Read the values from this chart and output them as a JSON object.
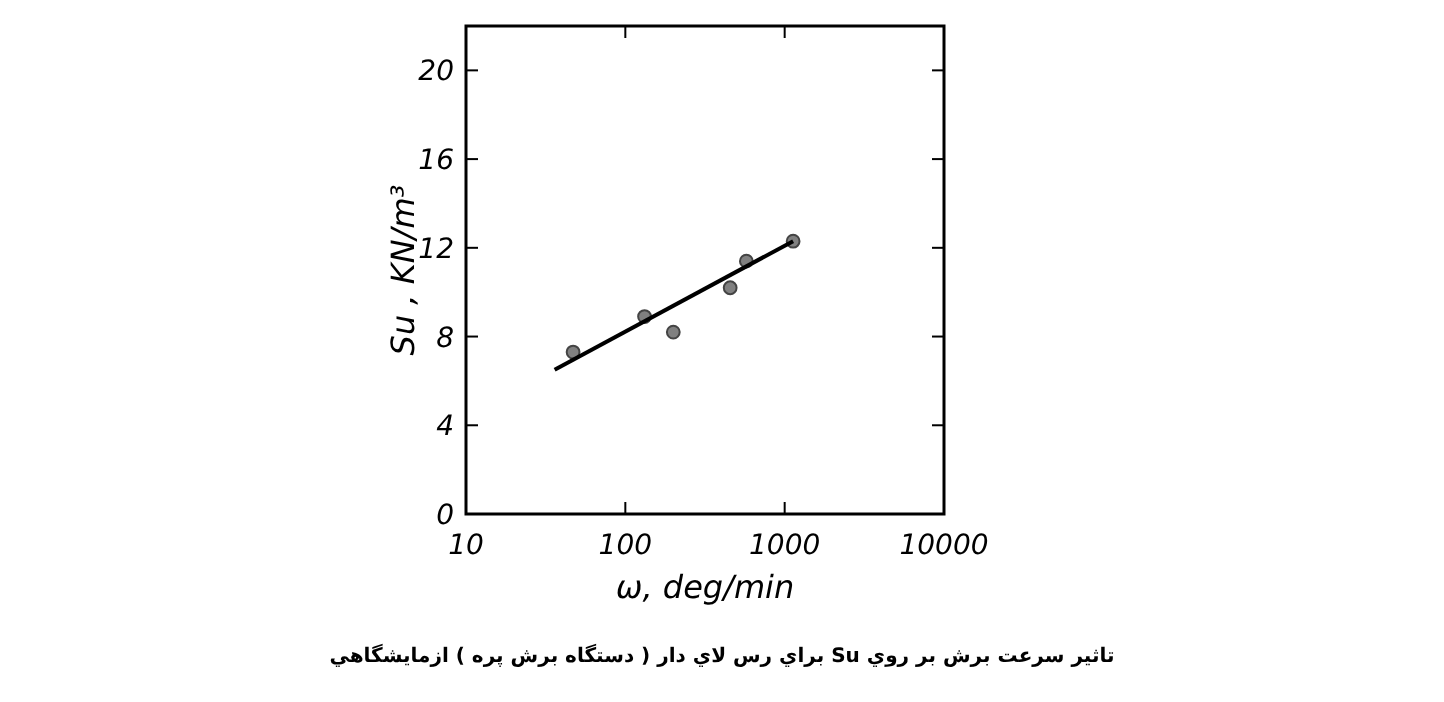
{
  "chart_data": {
    "type": "scatter",
    "xlabel": "ω, deg/min",
    "ylabel": "Su , KN/m³",
    "log": "x",
    "xlim": [
      10,
      10000
    ],
    "xticks": [
      10,
      100,
      1000,
      10000
    ],
    "ylim": [
      0,
      22
    ],
    "yticks": [
      0,
      4,
      8,
      12,
      16,
      20
    ],
    "grid": false,
    "series": [
      {
        "marker": "circle",
        "color": "#808080",
        "x": [
          47,
          132,
          200,
          455,
          575,
          1130
        ],
        "values": [
          7.3,
          8.9,
          8.2,
          10.2,
          11.4,
          12.3
        ]
      },
      {
        "type": "line",
        "marker": "none",
        "color": "#000000",
        "x": [
          36,
          1130
        ],
        "values": [
          6.5,
          12.3
        ]
      }
    ],
    "annotations": [
      "تاثير سرعت برش بر روي Su براي رس لاي دار ( دستگاه برش پره ) ازمايشگاهي"
    ]
  }
}
